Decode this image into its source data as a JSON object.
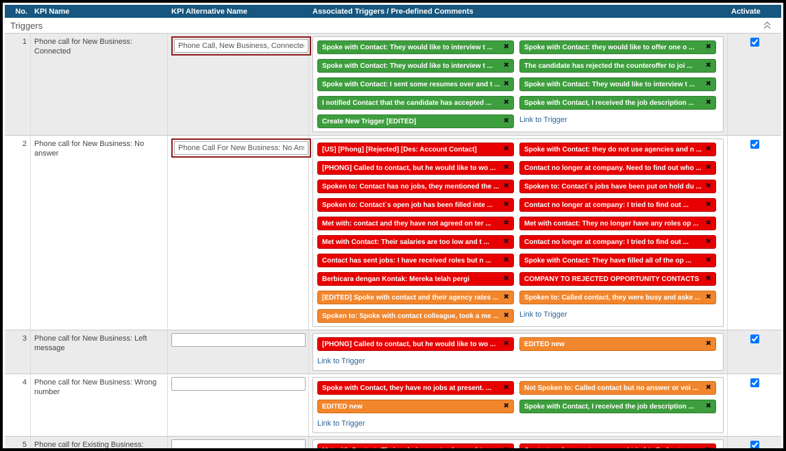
{
  "colors": {
    "header_bg": "#17567E",
    "stripe": "#EBEBEB",
    "green": "#3D9E3D",
    "red": "#E80000",
    "orange": "#F2862D",
    "link": "#2A6496",
    "annotation": "#8E1B1B"
  },
  "header": {
    "columns": [
      "No.",
      "KPI Name",
      "KPI Alternative Name",
      "Associated Triggers / Pre-defined Comments",
      "Activate"
    ]
  },
  "group": {
    "label": "Triggers"
  },
  "link_label": "Link to Trigger",
  "rows": [
    {
      "no": "1",
      "kpi_name": "Phone call for New Business: Connected",
      "alt_value": "Phone Call, New Business, Connected",
      "highlighted": true,
      "activated": true,
      "show_link": true,
      "tags": [
        {
          "text": "Spoke with Contact: They would like to interview t ...",
          "color": "green"
        },
        {
          "text": "Spoke with Contact: they would like to offer one o ...",
          "color": "green"
        },
        {
          "text": "Spoke with Contact: They would like to interview t ...",
          "color": "green"
        },
        {
          "text": "The candidate has rejected the counteroffer to joi ...",
          "color": "green"
        },
        {
          "text": "Spoke with Contact: I sent some resumes over and t ...",
          "color": "green"
        },
        {
          "text": "Spoke with Contact: They would like to interview t ...",
          "color": "green"
        },
        {
          "text": "I notified Contact that the candidate has accepted ...",
          "color": "green"
        },
        {
          "text": "Spoke with Contact, I received the job description ...",
          "color": "green"
        },
        {
          "text": "Create New Trigger [EDITED]",
          "color": "green"
        }
      ]
    },
    {
      "no": "2",
      "kpi_name": "Phone call for New Business: No answer",
      "alt_value": "Phone Call For New Business: No Answ",
      "highlighted": true,
      "activated": true,
      "show_link": true,
      "tags": [
        {
          "text": "[US] [Phong] [Rejected] [Des: Account Contact]",
          "color": "red"
        },
        {
          "text": "Spoke with Contact: they do not use agencies and n ...",
          "color": "red"
        },
        {
          "text": "[PHONG] Called to contact, but he would like to wo ...",
          "color": "red"
        },
        {
          "text": "Contact no longer at company. Need to find out who ...",
          "color": "red"
        },
        {
          "text": "Spoken to: Contact has no jobs, they mentioned the ...",
          "color": "red"
        },
        {
          "text": "Spoken to: Contact´s jobs have been put on hold du ...",
          "color": "red"
        },
        {
          "text": "Spoken to: Contact´s open job has been filled inte ...",
          "color": "red"
        },
        {
          "text": "Contact no longer at company: I tried to find out ...",
          "color": "red"
        },
        {
          "text": "Met with: contact and they have not agreed on ter ...",
          "color": "red"
        },
        {
          "text": "Met with contact: They no longer have any roles op ...",
          "color": "red"
        },
        {
          "text": "Met with Contact: Their salaries are too low and t ...",
          "color": "red"
        },
        {
          "text": "Contact no longer at company: I tried to find out ...",
          "color": "red"
        },
        {
          "text": "Contact has sent jobs: I have received roles but n ...",
          "color": "red"
        },
        {
          "text": "Spoke with Contact: They have filled all of the op ...",
          "color": "red"
        },
        {
          "text": "Berbicara dengan Kontak: Mereka telah pergi",
          "color": "red"
        },
        {
          "text": "COMPANY TO REJECTED OPPORTUNITY CONTACTS",
          "color": "red"
        },
        {
          "text": "[EDITED] Spoke with contact and their agency rates ...",
          "color": "orange"
        },
        {
          "text": "Spoken to: Called contact, they were busy and aske ...",
          "color": "orange"
        },
        {
          "text": "Spoken to: Spoke with contact colleague, took a me ...",
          "color": "orange"
        }
      ]
    },
    {
      "no": "3",
      "kpi_name": "Phone call for New Business: Left message",
      "alt_value": "",
      "highlighted": false,
      "activated": true,
      "show_link": true,
      "tags": [
        {
          "text": "[PHONG] Called to contact, but he would like to wo ...",
          "color": "red"
        },
        {
          "text": "EDITED new",
          "color": "orange"
        }
      ]
    },
    {
      "no": "4",
      "kpi_name": "Phone call for New Business: Wrong number",
      "alt_value": "",
      "highlighted": false,
      "activated": true,
      "show_link": true,
      "tags": [
        {
          "text": "Spoke with Contact, they have no jobs at present. ...",
          "color": "red"
        },
        {
          "text": "Not Spoken to: Called contact but no answer or voi ...",
          "color": "orange"
        },
        {
          "text": "EDITED new",
          "color": "orange"
        },
        {
          "text": "Spoke with Contact, I received the job description ...",
          "color": "green"
        }
      ]
    },
    {
      "no": "5",
      "kpi_name": "Phone call for Existing Business: Connected",
      "alt_value": "",
      "highlighted": false,
      "activated": true,
      "show_link": false,
      "tags": [
        {
          "text": "Met with Contact: Their salaries are too low and t ...",
          "color": "red"
        },
        {
          "text": "Contact no longer at company: I tried to find out ...",
          "color": "red"
        }
      ]
    }
  ]
}
